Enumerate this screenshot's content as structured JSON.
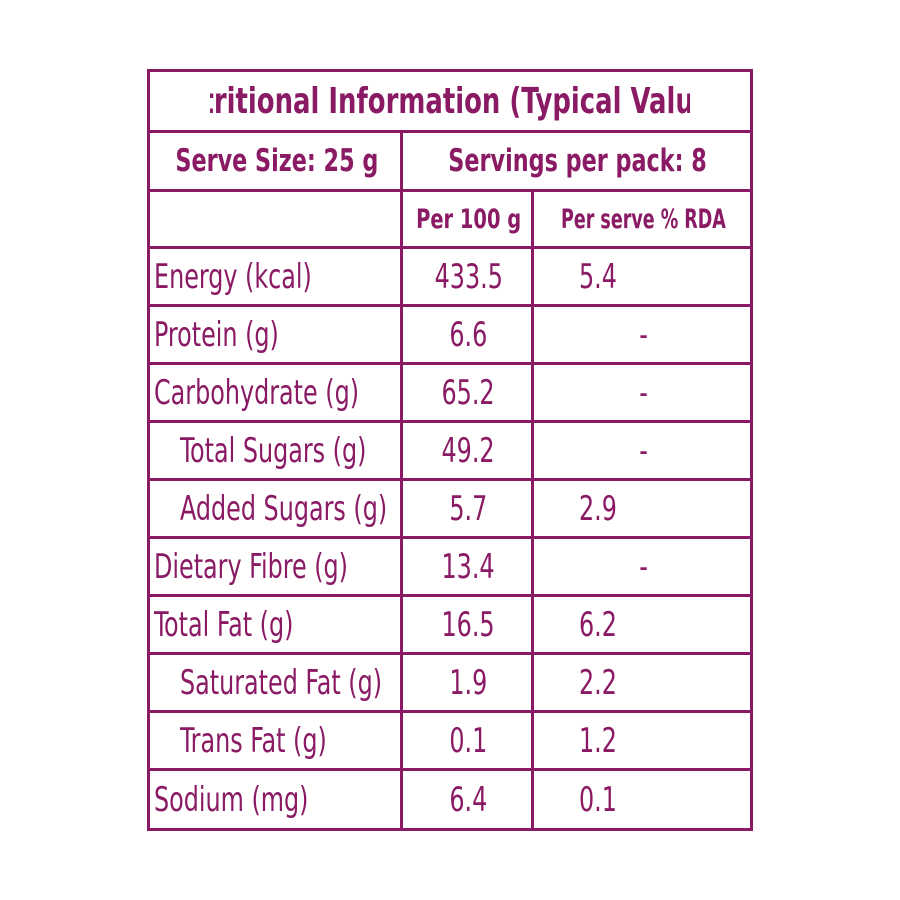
{
  "panel": {
    "title": "Nutritional Information (Typical Values)",
    "serve_size": "Serve Size: 25 g",
    "servings_per_pack": "Servings per pack: 8",
    "col_per100": "Per 100 g",
    "col_rda": "Per serve % RDA",
    "colors": {
      "accent": "#8a1a64",
      "background": "#ffffff"
    }
  },
  "nutrients": [
    {
      "label": "Energy (kcal)",
      "per100": "433.5",
      "rda": "5.4"
    },
    {
      "label": "Protein (g)",
      "per100": "6.6",
      "rda": "-"
    },
    {
      "label": "Carbohydrate (g)",
      "per100": "65.2",
      "rda": "-"
    },
    {
      "label": "Total Sugars (g)",
      "per100": "49.2",
      "rda": "-"
    },
    {
      "label": "Added Sugars (g)",
      "per100": "5.7",
      "rda": "2.9"
    },
    {
      "label": "Dietary Fibre (g)",
      "per100": "13.4",
      "rda": "-"
    },
    {
      "label": "Total Fat (g)",
      "per100": "16.5",
      "rda": "6.2"
    },
    {
      "label": "Saturated Fat (g)",
      "per100": "1.9",
      "rda": "2.2"
    },
    {
      "label": "Trans Fat (g)",
      "per100": "0.1",
      "rda": "1.2"
    },
    {
      "label": "Sodium (mg)",
      "per100": "6.4",
      "rda": "0.1"
    }
  ]
}
